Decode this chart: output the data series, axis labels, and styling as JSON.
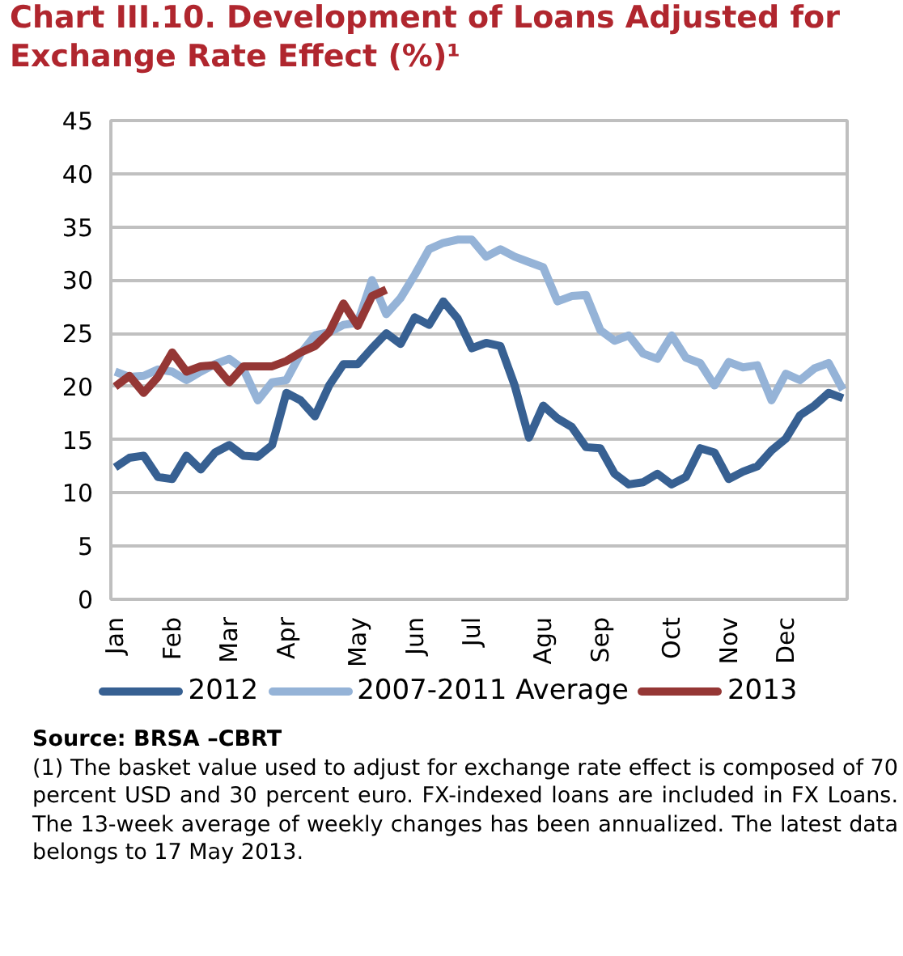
{
  "chart_data": {
    "type": "line",
    "title": "Chart III.10. Development of Loans Adjusted for Exchange Rate Effect (%)¹",
    "categories": [
      "Jan",
      null,
      null,
      null,
      "Feb",
      null,
      null,
      null,
      "Mar",
      null,
      null,
      null,
      "Apr",
      null,
      null,
      null,
      null,
      "May",
      null,
      null,
      null,
      "Jun",
      null,
      null,
      null,
      "Jul",
      null,
      null,
      null,
      null,
      "Agu",
      null,
      null,
      null,
      "Sep",
      null,
      null,
      null,
      null,
      "Oct",
      null,
      null,
      null,
      "Nov",
      null,
      null,
      null,
      "Dec",
      null,
      null,
      null,
      null
    ],
    "series": [
      {
        "name": "2012",
        "color": "#376092",
        "values": [
          12.4,
          13.3,
          13.5,
          11.5,
          11.3,
          13.5,
          12.2,
          13.8,
          14.5,
          13.5,
          13.4,
          14.5,
          19.4,
          18.7,
          17.2,
          20.1,
          22.1,
          22.1,
          23.6,
          25,
          24,
          26.5,
          25.8,
          28,
          26.4,
          23.6,
          24.1,
          23.8,
          20.1,
          15.2,
          18.2,
          17,
          16.2,
          14.3,
          14.2,
          11.8,
          10.8,
          11,
          11.8,
          10.8,
          11.5,
          14.2,
          13.8,
          11.3,
          12,
          12.5,
          14,
          15.1,
          17.3,
          18.2,
          19.4,
          18.9
        ]
      },
      {
        "name": "2007-2011 Average",
        "color": "#95b3d7",
        "values": [
          21.4,
          20.9,
          21,
          21.6,
          21.4,
          20.6,
          21.4,
          22.1,
          22.6,
          21.6,
          18.7,
          20.4,
          20.6,
          23.1,
          24.8,
          25.1,
          25.8,
          26,
          30,
          26.8,
          28.3,
          30.5,
          32.9,
          33.5,
          33.8,
          33.8,
          32.2,
          32.9,
          32.2,
          31.7,
          31.2,
          28,
          28.5,
          28.6,
          25.3,
          24.3,
          24.8,
          23.1,
          22.6,
          24.8,
          22.7,
          22.2,
          20.1,
          22.3,
          21.8,
          22,
          18.7,
          21.2,
          20.6,
          21.7,
          22.2,
          19.7
        ]
      },
      {
        "name": "2013",
        "color": "#953735",
        "values": [
          20,
          21,
          19.4,
          20.9,
          23.2,
          21.4,
          21.9,
          22,
          20.4,
          21.9,
          21.9,
          21.9,
          22.4,
          23.2,
          23.8,
          25.1,
          27.8,
          25.7,
          28.5,
          29.1,
          null,
          null,
          null,
          null,
          null,
          null,
          null,
          null,
          null,
          null,
          null,
          null,
          null,
          null,
          null,
          null,
          null,
          null,
          null,
          null,
          null,
          null,
          null,
          null,
          null,
          null,
          null,
          null,
          null,
          null,
          null,
          null
        ]
      }
    ],
    "ylim": [
      0,
      45
    ],
    "yticks": [
      0,
      5,
      10,
      15,
      20,
      25,
      30,
      35,
      40,
      45
    ],
    "grid": "y",
    "legend": "bottom",
    "annotations": [
      "Source: BRSA –CBRT",
      "(1) The basket value used to adjust for exchange rate effect is composed of 70 percent USD and 30 percent euro. FX-indexed loans are included in FX Loans. The 13-week average of weekly changes has been annualized. The latest data belongs to 17 May 2013."
    ]
  }
}
